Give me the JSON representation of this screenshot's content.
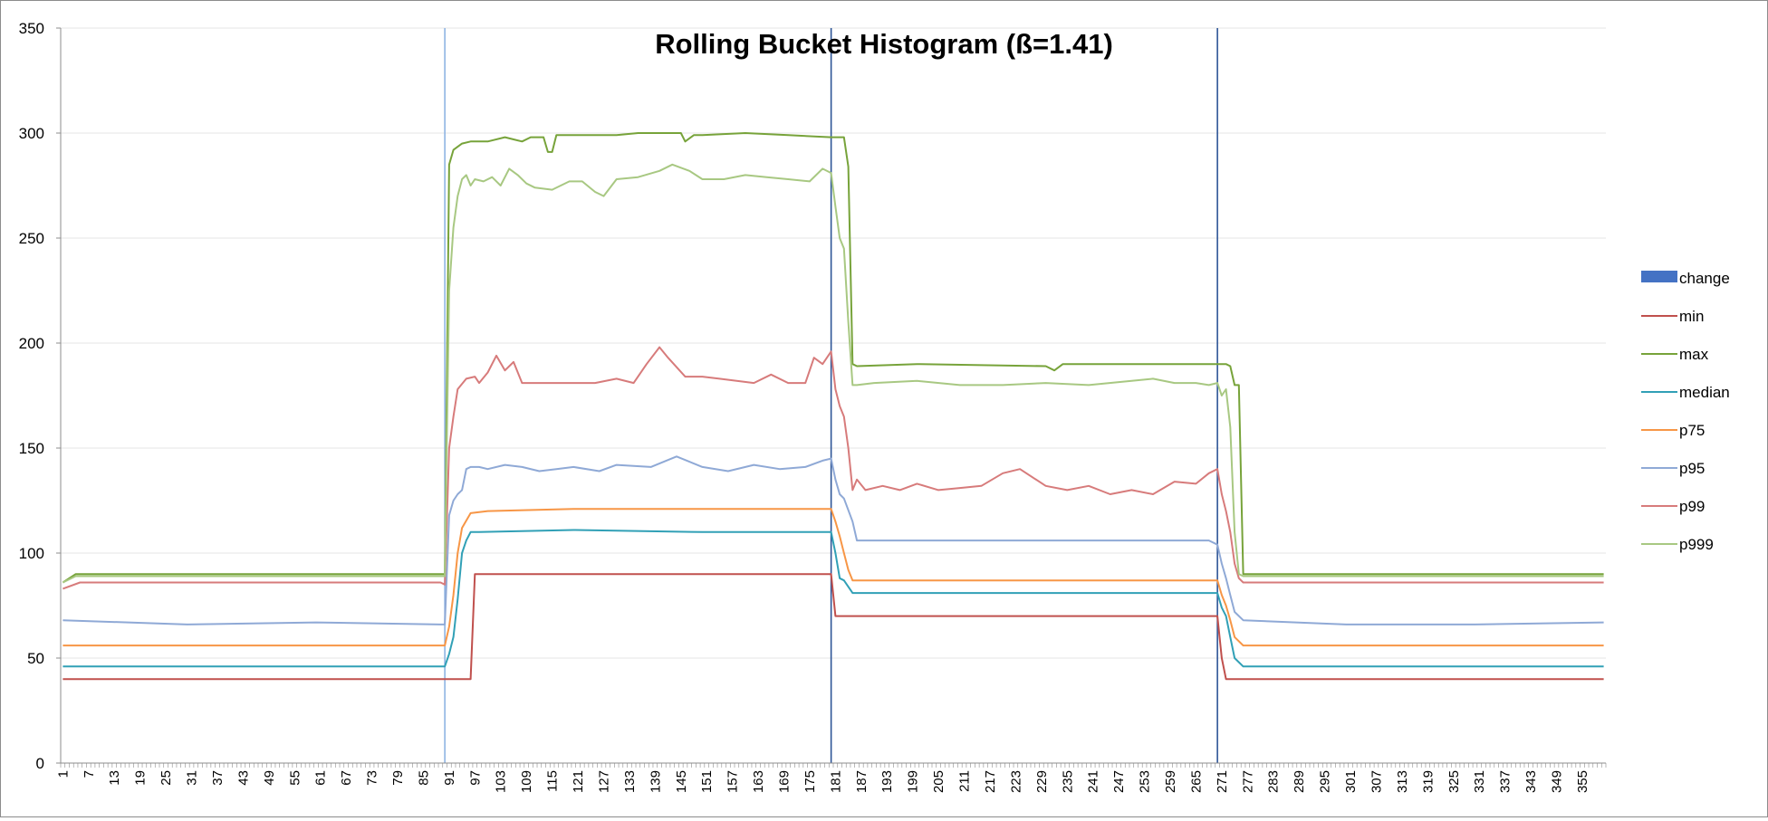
{
  "chart_data": {
    "type": "line",
    "title": "Rolling Bucket Histogram (ß=1.41)",
    "xlabel": "",
    "ylabel": "",
    "ylim": [
      0,
      350
    ],
    "yticks": [
      0,
      50,
      100,
      150,
      200,
      250,
      300,
      350
    ],
    "xlim": [
      1,
      360
    ],
    "xticks": [
      1,
      7,
      13,
      19,
      25,
      31,
      37,
      43,
      49,
      55,
      61,
      67,
      73,
      79,
      85,
      91,
      97,
      103,
      109,
      115,
      121,
      127,
      133,
      139,
      145,
      151,
      157,
      163,
      169,
      175,
      181,
      187,
      193,
      199,
      205,
      211,
      217,
      223,
      229,
      235,
      241,
      247,
      253,
      259,
      265,
      271,
      277,
      283,
      289,
      295,
      301,
      307,
      313,
      319,
      325,
      331,
      337,
      343,
      349,
      355
    ],
    "grid": "horizontal",
    "legend_position": "right",
    "change": {
      "name": "change",
      "x": [
        90,
        180,
        270
      ],
      "colors": [
        "#8eb4e3",
        "#2e5597",
        "#2e5597"
      ],
      "legend_color": "#4472c4"
    },
    "series": [
      {
        "name": "min",
        "color": "#c0504d",
        "x": [
          1,
          96,
          97,
          180,
          181,
          270,
          271,
          272,
          360
        ],
        "y": [
          40,
          40,
          90,
          90,
          70,
          70,
          50,
          40,
          40
        ]
      },
      {
        "name": "max",
        "color": "#77a33a",
        "x": [
          1,
          4,
          90,
          91,
          92,
          94,
          96,
          100,
          104,
          106,
          108,
          110,
          113,
          114,
          115,
          116,
          130,
          135,
          145,
          146,
          148,
          150,
          160,
          170,
          180,
          183,
          184,
          185,
          186,
          200,
          230,
          232,
          234,
          240,
          250,
          270,
          272,
          273,
          274,
          275,
          276,
          300,
          360
        ],
        "y": [
          86,
          90,
          90,
          285,
          292,
          295,
          296,
          296,
          298,
          297,
          296,
          298,
          298,
          291,
          291,
          299,
          299,
          300,
          300,
          296,
          299,
          299,
          300,
          299,
          298,
          298,
          284,
          190,
          189,
          190,
          189,
          187,
          190,
          190,
          190,
          190,
          190,
          189,
          180,
          180,
          90,
          90,
          90
        ]
      },
      {
        "name": "median",
        "color": "#31a0b6",
        "x": [
          1,
          90,
          91,
          92,
          93,
          94,
          95,
          96,
          98,
          120,
          150,
          178,
          180,
          181,
          182,
          183,
          185,
          186,
          200,
          268,
          270,
          271,
          272,
          273,
          274,
          276,
          300,
          360
        ],
        "y": [
          46,
          46,
          52,
          60,
          78,
          100,
          106,
          110,
          110,
          111,
          110,
          110,
          110,
          100,
          88,
          87,
          81,
          81,
          81,
          81,
          81,
          74,
          70,
          60,
          50,
          46,
          46,
          46
        ]
      },
      {
        "name": "p75",
        "color": "#f79646",
        "x": [
          1,
          90,
          91,
          92,
          93,
          94,
          96,
          100,
          120,
          150,
          178,
          180,
          181,
          182,
          183,
          184,
          185,
          200,
          268,
          270,
          271,
          272,
          273,
          274,
          276,
          300,
          360
        ],
        "y": [
          56,
          56,
          65,
          80,
          100,
          112,
          119,
          120,
          121,
          121,
          121,
          121,
          115,
          108,
          100,
          92,
          87,
          87,
          87,
          87,
          80,
          75,
          68,
          60,
          56,
          56,
          56
        ]
      },
      {
        "name": "p95",
        "color": "#8fa9d6",
        "x": [
          1,
          30,
          60,
          89,
          90,
          91,
          92,
          93,
          94,
          95,
          96,
          98,
          100,
          104,
          108,
          112,
          116,
          120,
          126,
          130,
          138,
          144,
          150,
          156,
          162,
          168,
          174,
          178,
          180,
          181,
          182,
          183,
          185,
          186,
          200,
          230,
          260,
          268,
          270,
          271,
          272,
          273,
          274,
          276,
          300,
          330,
          360
        ],
        "y": [
          68,
          66,
          67,
          66,
          66,
          118,
          125,
          128,
          130,
          140,
          141,
          141,
          140,
          142,
          141,
          139,
          140,
          141,
          139,
          142,
          141,
          146,
          141,
          139,
          142,
          140,
          141,
          144,
          145,
          135,
          128,
          126,
          115,
          106,
          106,
          106,
          106,
          106,
          104,
          95,
          88,
          80,
          72,
          68,
          66,
          66,
          67
        ]
      },
      {
        "name": "p99",
        "color": "#d77b7b",
        "x": [
          1,
          5,
          30,
          60,
          89,
          90,
          91,
          92,
          93,
          95,
          97,
          98,
          100,
          102,
          104,
          106,
          108,
          110,
          114,
          120,
          125,
          130,
          134,
          137,
          140,
          142,
          146,
          150,
          154,
          158,
          162,
          166,
          170,
          174,
          176,
          178,
          180,
          181,
          182,
          183,
          184,
          185,
          186,
          188,
          192,
          196,
          200,
          205,
          210,
          215,
          220,
          224,
          230,
          235,
          240,
          245,
          250,
          255,
          260,
          265,
          268,
          270,
          271,
          272,
          273,
          274,
          275,
          276,
          280,
          300,
          330,
          360
        ],
        "y": [
          83,
          86,
          86,
          86,
          86,
          85,
          150,
          165,
          178,
          183,
          184,
          181,
          186,
          194,
          187,
          191,
          181,
          181,
          181,
          181,
          181,
          183,
          181,
          190,
          198,
          193,
          184,
          184,
          183,
          182,
          181,
          185,
          181,
          181,
          193,
          190,
          196,
          178,
          170,
          165,
          150,
          130,
          135,
          130,
          132,
          130,
          133,
          130,
          131,
          132,
          138,
          140,
          132,
          130,
          132,
          128,
          130,
          128,
          134,
          133,
          138,
          140,
          128,
          120,
          110,
          95,
          88,
          86,
          86,
          86,
          86,
          86
        ]
      },
      {
        "name": "p999",
        "color": "#a8c882",
        "x": [
          1,
          4,
          30,
          60,
          89,
          90,
          91,
          92,
          93,
          94,
          95,
          96,
          97,
          99,
          101,
          103,
          105,
          107,
          109,
          111,
          115,
          119,
          122,
          125,
          127,
          130,
          135,
          140,
          143,
          147,
          150,
          155,
          160,
          165,
          170,
          175,
          178,
          180,
          181,
          182,
          183,
          184,
          185,
          186,
          190,
          200,
          210,
          220,
          230,
          240,
          250,
          255,
          260,
          265,
          268,
          270,
          271,
          272,
          273,
          274,
          275,
          276,
          300,
          360
        ],
        "y": [
          86,
          89,
          89,
          89,
          89,
          89,
          225,
          255,
          270,
          278,
          280,
          275,
          278,
          277,
          279,
          275,
          283,
          280,
          276,
          274,
          273,
          277,
          277,
          272,
          270,
          278,
          279,
          282,
          285,
          282,
          278,
          278,
          280,
          279,
          278,
          277,
          283,
          281,
          265,
          250,
          245,
          210,
          180,
          180,
          181,
          182,
          180,
          180,
          181,
          180,
          182,
          183,
          181,
          181,
          180,
          181,
          175,
          178,
          160,
          110,
          90,
          89,
          89,
          89
        ]
      }
    ]
  }
}
